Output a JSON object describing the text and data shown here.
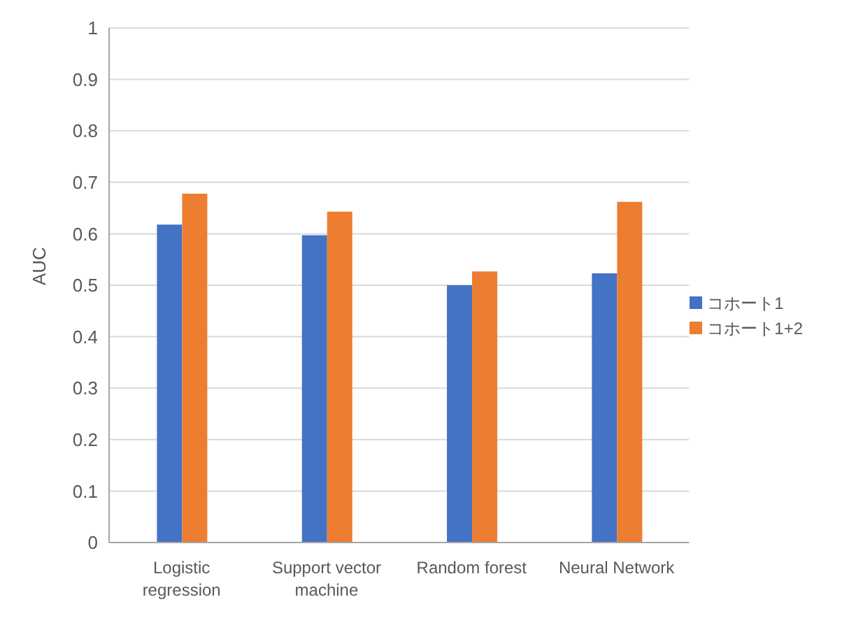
{
  "chart_data": {
    "type": "bar",
    "ylabel": "AUC",
    "categories": [
      "Logistic regression",
      "Support vector machine",
      "Random forest",
      "Neural Network"
    ],
    "series": [
      {
        "name": "コホート1",
        "color": "#4472c4",
        "values": [
          0.618,
          0.597,
          0.5,
          0.523
        ]
      },
      {
        "name": "コホート1+2",
        "color": "#ed7d31",
        "values": [
          0.678,
          0.643,
          0.527,
          0.662
        ]
      }
    ],
    "ylim": [
      0,
      1
    ],
    "yticks": [
      0,
      0.1,
      0.2,
      0.3,
      0.4,
      0.5,
      0.6,
      0.7,
      0.8,
      0.9,
      1
    ],
    "grid": "y",
    "legend": "right"
  }
}
